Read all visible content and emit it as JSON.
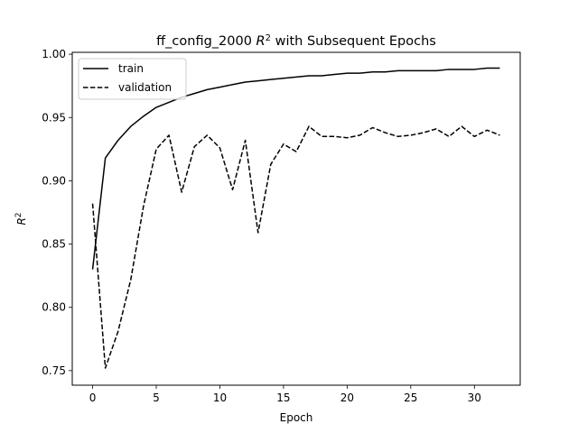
{
  "chart_data": {
    "type": "line",
    "title": "ff_config_2000 R² with Subsequent Epochs",
    "title_parts": {
      "prefix": "ff_config_2000 ",
      "var": "R",
      "sup": "2",
      "suffix": " with Subsequent Epochs"
    },
    "xlabel": "Epoch",
    "ylabel": "R²",
    "ylabel_parts": {
      "var": "R",
      "sup": "2"
    },
    "xlim": [
      -1.6,
      33.6
    ],
    "ylim": [
      0.7385,
      1.0015
    ],
    "x_ticks": [
      0,
      5,
      10,
      15,
      20,
      25,
      30
    ],
    "y_ticks": [
      0.75,
      0.8,
      0.85,
      0.9,
      0.95,
      1.0
    ],
    "grid": false,
    "legend_position": "top-left",
    "series": [
      {
        "name": "train",
        "style": "solid",
        "color": "#000000",
        "x": [
          0,
          1,
          2,
          3,
          4,
          5,
          6,
          7,
          8,
          9,
          10,
          11,
          12,
          13,
          14,
          15,
          16,
          17,
          18,
          19,
          20,
          21,
          22,
          23,
          24,
          25,
          26,
          27,
          28,
          29,
          30,
          31,
          32
        ],
        "values": [
          0.83,
          0.918,
          0.932,
          0.943,
          0.951,
          0.958,
          0.962,
          0.966,
          0.969,
          0.972,
          0.974,
          0.976,
          0.978,
          0.979,
          0.98,
          0.981,
          0.982,
          0.983,
          0.983,
          0.984,
          0.985,
          0.985,
          0.986,
          0.986,
          0.987,
          0.987,
          0.987,
          0.987,
          0.988,
          0.988,
          0.988,
          0.989,
          0.989
        ]
      },
      {
        "name": "validation",
        "style": "dashed",
        "color": "#000000",
        "x": [
          0,
          1,
          2,
          3,
          4,
          5,
          6,
          7,
          8,
          9,
          10,
          11,
          12,
          13,
          14,
          15,
          16,
          17,
          18,
          19,
          20,
          21,
          22,
          23,
          24,
          25,
          26,
          27,
          28,
          29,
          30,
          31,
          32
        ],
        "values": [
          0.882,
          0.752,
          0.781,
          0.822,
          0.88,
          0.925,
          0.936,
          0.891,
          0.927,
          0.936,
          0.926,
          0.893,
          0.932,
          0.859,
          0.913,
          0.929,
          0.923,
          0.943,
          0.935,
          0.935,
          0.934,
          0.936,
          0.942,
          0.938,
          0.935,
          0.936,
          0.938,
          0.941,
          0.935,
          0.943,
          0.935,
          0.94,
          0.936
        ]
      }
    ]
  }
}
